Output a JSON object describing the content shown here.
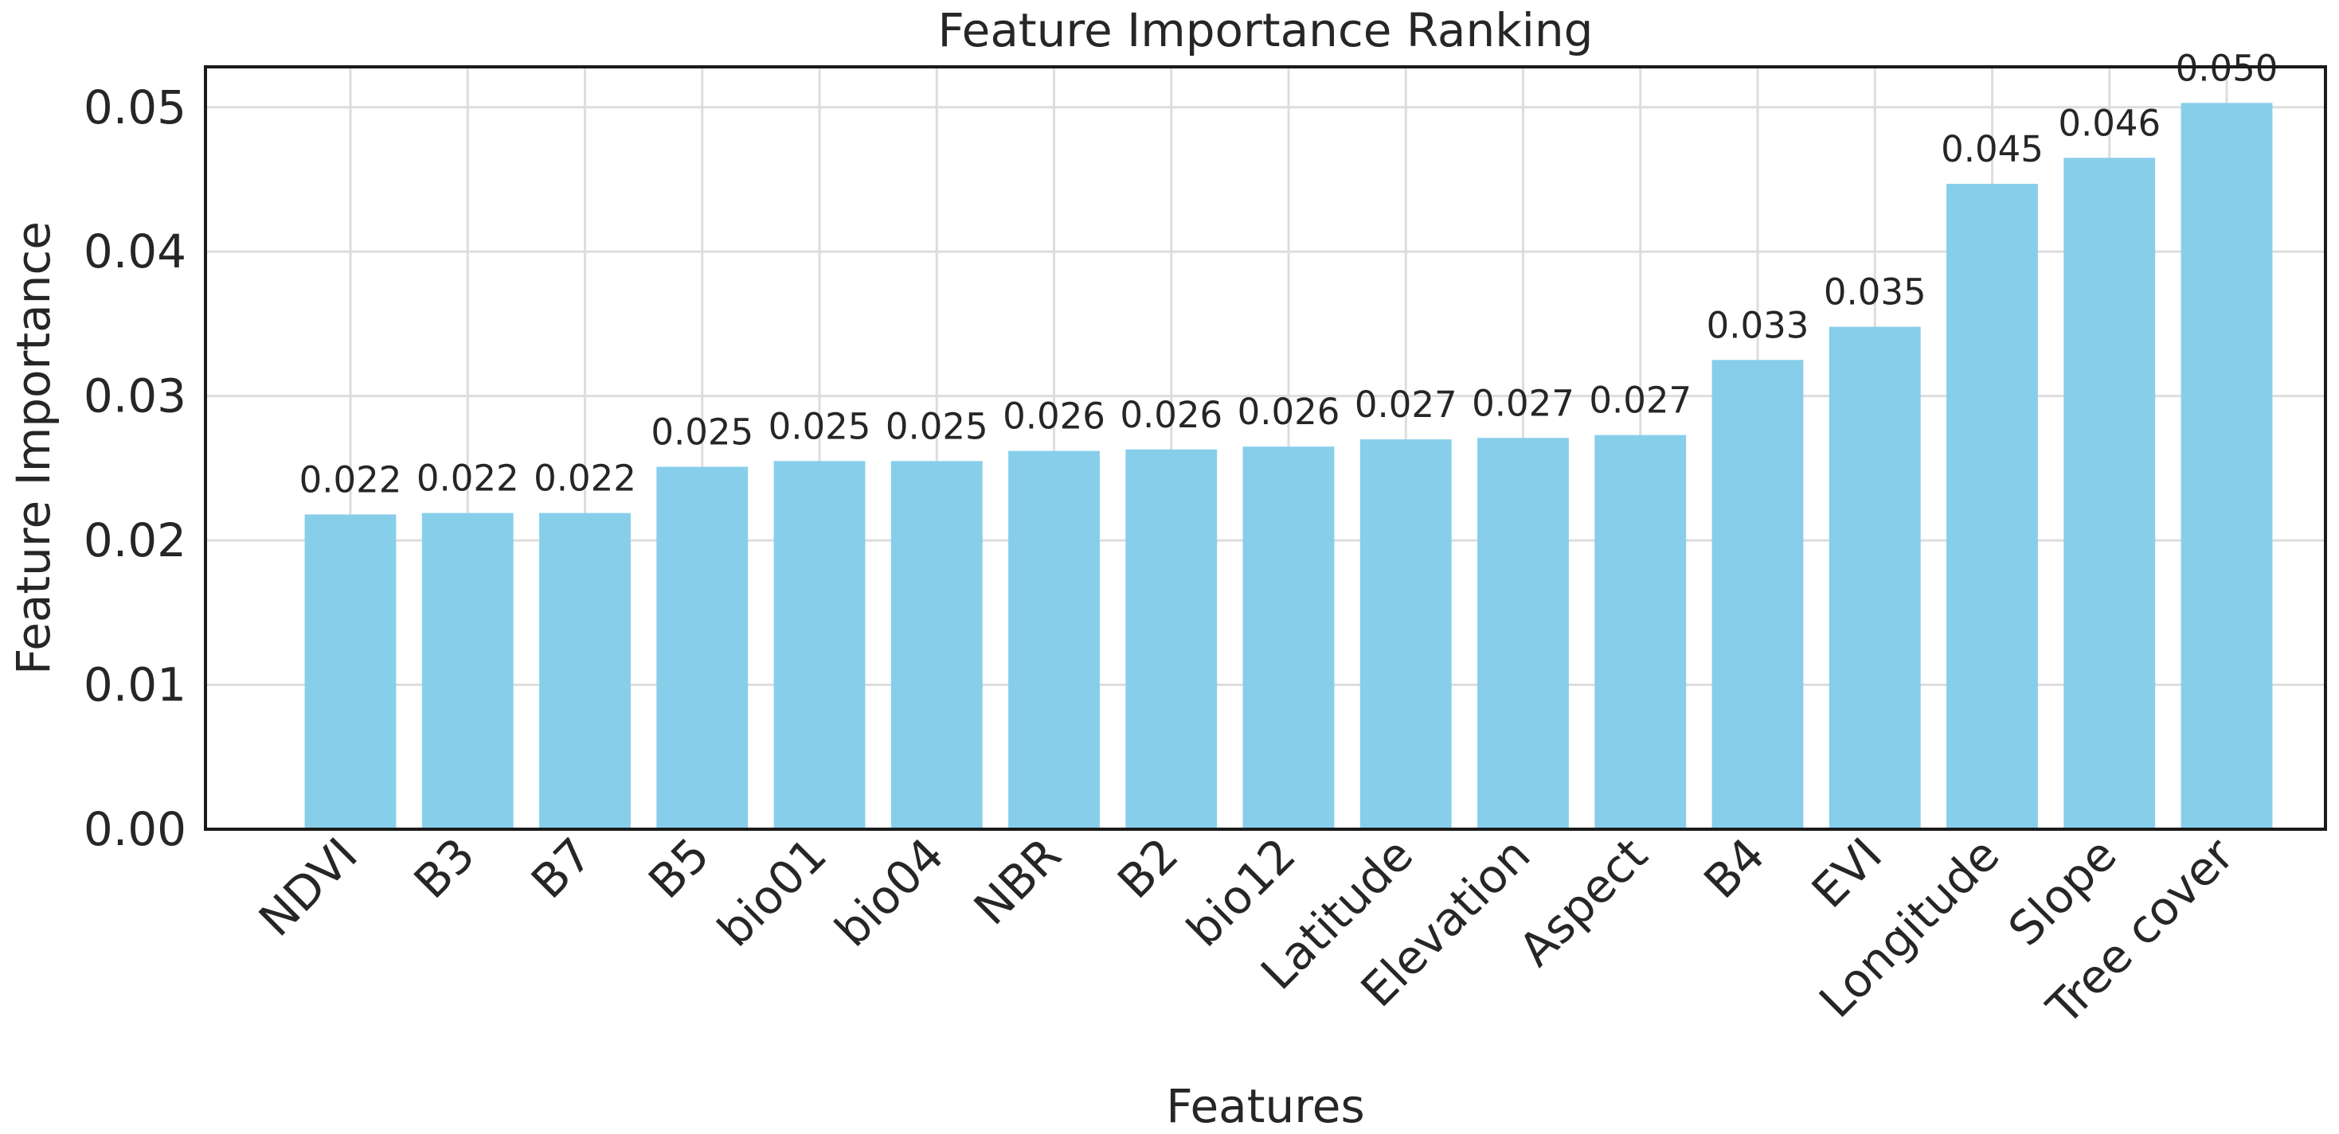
{
  "chart_data": {
    "type": "bar",
    "title": "Feature Importance Ranking",
    "xlabel": "Features",
    "ylabel": "Feature Importance",
    "categories": [
      "NDVI",
      "B3",
      "B7",
      "B5",
      "bio01",
      "bio04",
      "NBR",
      "B2",
      "bio12",
      "Latitude",
      "Elevation",
      "Aspect",
      "B4",
      "EVI",
      "Longitude",
      "Slope",
      "Tree cover"
    ],
    "values": [
      0.0218,
      0.0219,
      0.0219,
      0.0251,
      0.0255,
      0.0255,
      0.0262,
      0.0263,
      0.0265,
      0.027,
      0.0271,
      0.0273,
      0.0325,
      0.0348,
      0.0447,
      0.0465,
      0.0503
    ],
    "value_labels": [
      "0.022",
      "0.022",
      "0.022",
      "0.025",
      "0.025",
      "0.025",
      "0.026",
      "0.026",
      "0.026",
      "0.027",
      "0.027",
      "0.027",
      "0.033",
      "0.035",
      "0.045",
      "0.046",
      "0.050"
    ],
    "yticks": [
      0,
      0.01,
      0.02,
      0.03,
      0.04,
      0.05
    ],
    "ytick_labels": [
      "0.00",
      "0.01",
      "0.02",
      "0.03",
      "0.04",
      "0.05"
    ],
    "ylim": [
      0,
      0.0528
    ],
    "grid": true,
    "legend": "none",
    "bar_color": "#87CEEB"
  }
}
